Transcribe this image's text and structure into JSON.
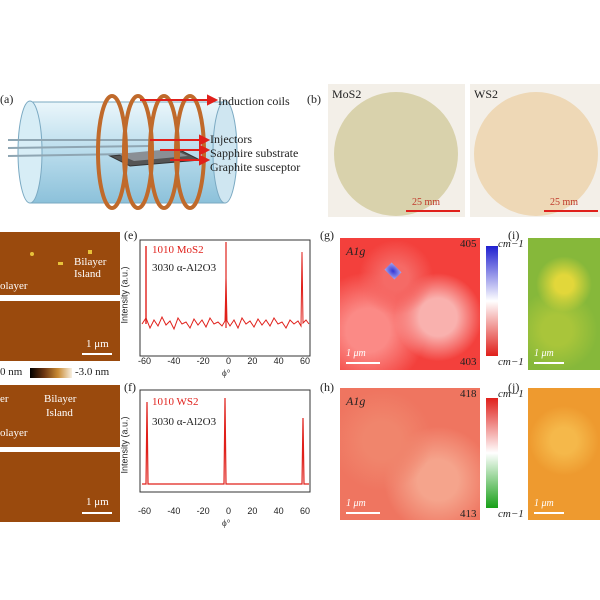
{
  "panel_a": {
    "label": "(a)",
    "callouts": [
      "Induction coils",
      "Injectors",
      "Sapphire substrate",
      "Graphite susceptor"
    ]
  },
  "panel_b": {
    "label": "(b)",
    "wafer_left": {
      "name": "MoS2",
      "color": "#d9d2ac"
    },
    "wafer_right": {
      "name": "WS2",
      "color": "#eed8b6"
    },
    "scale": "25 mm"
  },
  "panel_d": {
    "bilayer": "Bilayer",
    "island": "Island",
    "monolayer": "olayer",
    "scale": "1 μm",
    "colorbar_min": "0 nm",
    "colorbar_max": "-3.0 nm"
  },
  "panel_d2": {
    "prefix": "er",
    "bilayer": "Bilayer",
    "island": "Island",
    "monolayer": "olayer",
    "scale": "1 μm"
  },
  "panel_e": {
    "label": "(e)",
    "legend1": "1010 MoS2",
    "legend2": "3030 α-Al2O3",
    "ylabel": "Intensity (a.u.)",
    "xlabel": "ϕ°",
    "xticks": [
      "-60",
      "-40",
      "-20",
      "0",
      "20",
      "40",
      "60"
    ]
  },
  "panel_f": {
    "label": "(f)",
    "legend1": "1010 WS2",
    "legend2": "3030 α-Al2O3",
    "ylabel": "Intensity (a.u.)",
    "xlabel": "ϕ°",
    "xticks": [
      "-60",
      "-40",
      "-20",
      "0",
      "20",
      "40",
      "60"
    ]
  },
  "panel_g": {
    "label": "(g)",
    "mode": "A1g",
    "max": "405",
    "min": "403",
    "unit": "cm−1",
    "scale": "1 μm"
  },
  "panel_h": {
    "label": "(h)",
    "mode": "A1g",
    "max": "418",
    "min": "413",
    "unit": "cm−1",
    "scale": "1 μm"
  },
  "panel_i": {
    "label": "(i)",
    "scale": "1 μm"
  },
  "panel_j": {
    "label": "(j)",
    "scale": "1 μm"
  },
  "colors": {
    "accent_red": "#e0201b",
    "afm_brown": "#9a4a0d"
  }
}
